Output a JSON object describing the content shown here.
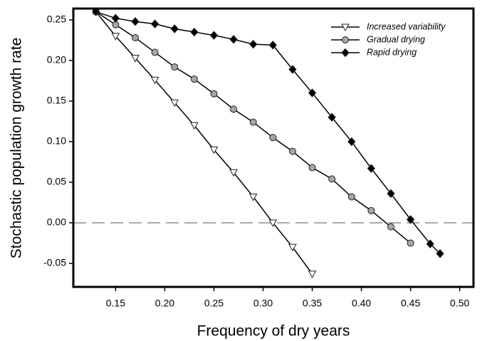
{
  "chart_data": {
    "type": "line",
    "xlabel": "Frequency of dry years",
    "ylabel": "Stochastic population growth rate",
    "xlim": [
      0.107,
      0.514
    ],
    "ylim": [
      -0.079,
      0.264
    ],
    "xticks": [
      0.15,
      {
        "value": 0.2,
        "label": "0.20"
      },
      0.25,
      {
        "value": 0.3,
        "label": "0.30"
      },
      0.35,
      {
        "value": 0.4,
        "label": "0.40"
      },
      0.45,
      {
        "value": 0.5,
        "label": "0.50"
      }
    ],
    "yticks": [
      -0.05,
      {
        "value": 0,
        "label": "0.00"
      },
      0.05,
      {
        "value": 0.1,
        "label": "0.10"
      },
      0.15,
      {
        "value": 0.2,
        "label": "0.20"
      },
      0.25
    ],
    "reference_line": 0,
    "legend": "upper right",
    "series": [
      {
        "name": "Increased variability",
        "color": "#ffffff",
        "marker": "triangle-down",
        "x": [
          0.13,
          0.15,
          0.17,
          0.19,
          0.21,
          0.23,
          0.25,
          0.27,
          0.29,
          0.31,
          0.33,
          0.35
        ],
        "values": [
          0.26,
          0.23,
          0.203,
          0.176,
          0.148,
          0.12,
          0.09,
          0.062,
          0.032,
          0,
          -0.03,
          -0.063
        ]
      },
      {
        "name": "Gradual drying",
        "color": "#a6a6a6",
        "marker": "circle",
        "x": [
          0.13,
          0.15,
          0.17,
          0.19,
          0.21,
          0.23,
          0.25,
          0.27,
          0.29,
          0.31,
          0.33,
          0.35,
          0.37,
          0.39,
          0.41,
          0.43,
          0.45
        ],
        "values": [
          0.26,
          0.244,
          0.228,
          0.21,
          0.192,
          0.177,
          0.159,
          0.14,
          0.124,
          0.105,
          0.088,
          0.068,
          0.054,
          0.032,
          0.015,
          -0.005,
          -0.025
        ]
      },
      {
        "name": "Rapid drying",
        "color": "#000000",
        "marker": "diamond",
        "x": [
          0.13,
          0.15,
          0.17,
          0.19,
          0.21,
          0.23,
          0.25,
          0.27,
          0.29,
          0.31,
          0.33,
          0.35,
          0.37,
          0.39,
          0.41,
          0.43,
          0.45,
          0.47,
          0.48
        ],
        "values": [
          0.26,
          0.252,
          0.248,
          0.245,
          0.239,
          0.235,
          0.231,
          0.226,
          0.22,
          0.219,
          0.189,
          0.16,
          0.13,
          0.1,
          0.067,
          0.036,
          0.004,
          -0.026,
          -0.038
        ]
      }
    ]
  }
}
